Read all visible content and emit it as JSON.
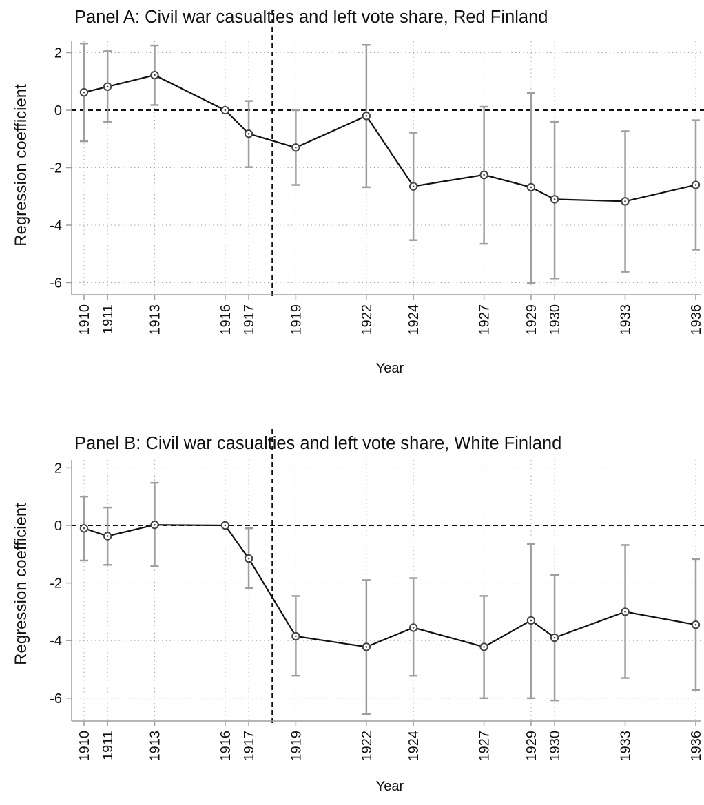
{
  "chart_data": [
    {
      "type": "line",
      "title": "Panel A: Civil war casualties and left vote share, Red Finland",
      "xlabel": "Year",
      "ylabel": "Regression coefficient",
      "x": [
        1910,
        1911,
        1913,
        1916,
        1917,
        1919,
        1922,
        1924,
        1927,
        1929,
        1930,
        1933,
        1936
      ],
      "x_tick_labels": [
        "1910",
        "1911",
        "1913",
        "1916",
        "1917",
        "1919",
        "1922",
        "1924",
        "1927",
        "1929",
        "1930",
        "1933",
        "1936"
      ],
      "y_ticks": [
        2,
        0,
        -2,
        -4,
        -6
      ],
      "y_tick_labels": [
        "2",
        "0",
        "-2",
        "-4",
        "-6"
      ],
      "ylim": [
        -6.5,
        2.45
      ],
      "xlim": [
        1910,
        1936
      ],
      "grid": "dotted",
      "reference_lines": {
        "y": 0,
        "x": 1918
      },
      "series": [
        {
          "values": [
            0.62,
            0.82,
            1.22,
            0.0,
            -0.82,
            -1.3,
            -0.2,
            -2.65,
            -2.25,
            -2.68,
            -3.1,
            -3.17,
            -2.6
          ],
          "ci_low": [
            -1.08,
            -0.4,
            0.18,
            0.0,
            -1.98,
            -2.6,
            -2.68,
            -4.52,
            -4.65,
            -6.02,
            -5.85,
            -5.62,
            -4.85
          ],
          "ci_high": [
            2.32,
            2.05,
            2.25,
            0.0,
            0.32,
            0.0,
            2.27,
            -0.78,
            0.12,
            0.6,
            -0.4,
            -0.73,
            -0.35
          ]
        }
      ],
      "colors": {
        "line": "#111111",
        "errorbar": "#9e9e9e",
        "marker": "#444444"
      }
    },
    {
      "type": "line",
      "title": "Panel B: Civil war casualties and left vote share, White Finland",
      "xlabel": "Year",
      "ylabel": "Regression coefficient",
      "x": [
        1910,
        1911,
        1913,
        1916,
        1917,
        1919,
        1922,
        1924,
        1927,
        1929,
        1930,
        1933,
        1936
      ],
      "x_tick_labels": [
        "1910",
        "1911",
        "1913",
        "1916",
        "1917",
        "1919",
        "1922",
        "1924",
        "1927",
        "1929",
        "1930",
        "1933",
        "1936"
      ],
      "y_ticks": [
        2,
        0,
        -2,
        -4,
        -6
      ],
      "y_tick_labels": [
        "2",
        "0",
        "-2",
        "-4",
        "-6"
      ],
      "ylim": [
        -7.0,
        2.2
      ],
      "xlim": [
        1910,
        1936
      ],
      "grid": "dotted",
      "reference_lines": {
        "y": 0,
        "x": 1918
      },
      "series": [
        {
          "values": [
            -0.1,
            -0.37,
            0.02,
            0.0,
            -1.15,
            -3.85,
            -4.22,
            -3.55,
            -4.22,
            -3.3,
            -3.9,
            -3.0,
            -3.45
          ],
          "ci_low": [
            -1.22,
            -1.37,
            -1.42,
            0.0,
            -2.18,
            -5.22,
            -6.55,
            -5.22,
            -6.0,
            -6.0,
            -6.08,
            -5.3,
            -5.72
          ],
          "ci_high": [
            1.0,
            0.62,
            1.48,
            0.0,
            -0.1,
            -2.45,
            -1.9,
            -1.83,
            -2.45,
            -0.65,
            -1.72,
            -0.68,
            -1.17
          ]
        }
      ],
      "colors": {
        "line": "#111111",
        "errorbar": "#9e9e9e",
        "marker": "#444444"
      }
    }
  ]
}
